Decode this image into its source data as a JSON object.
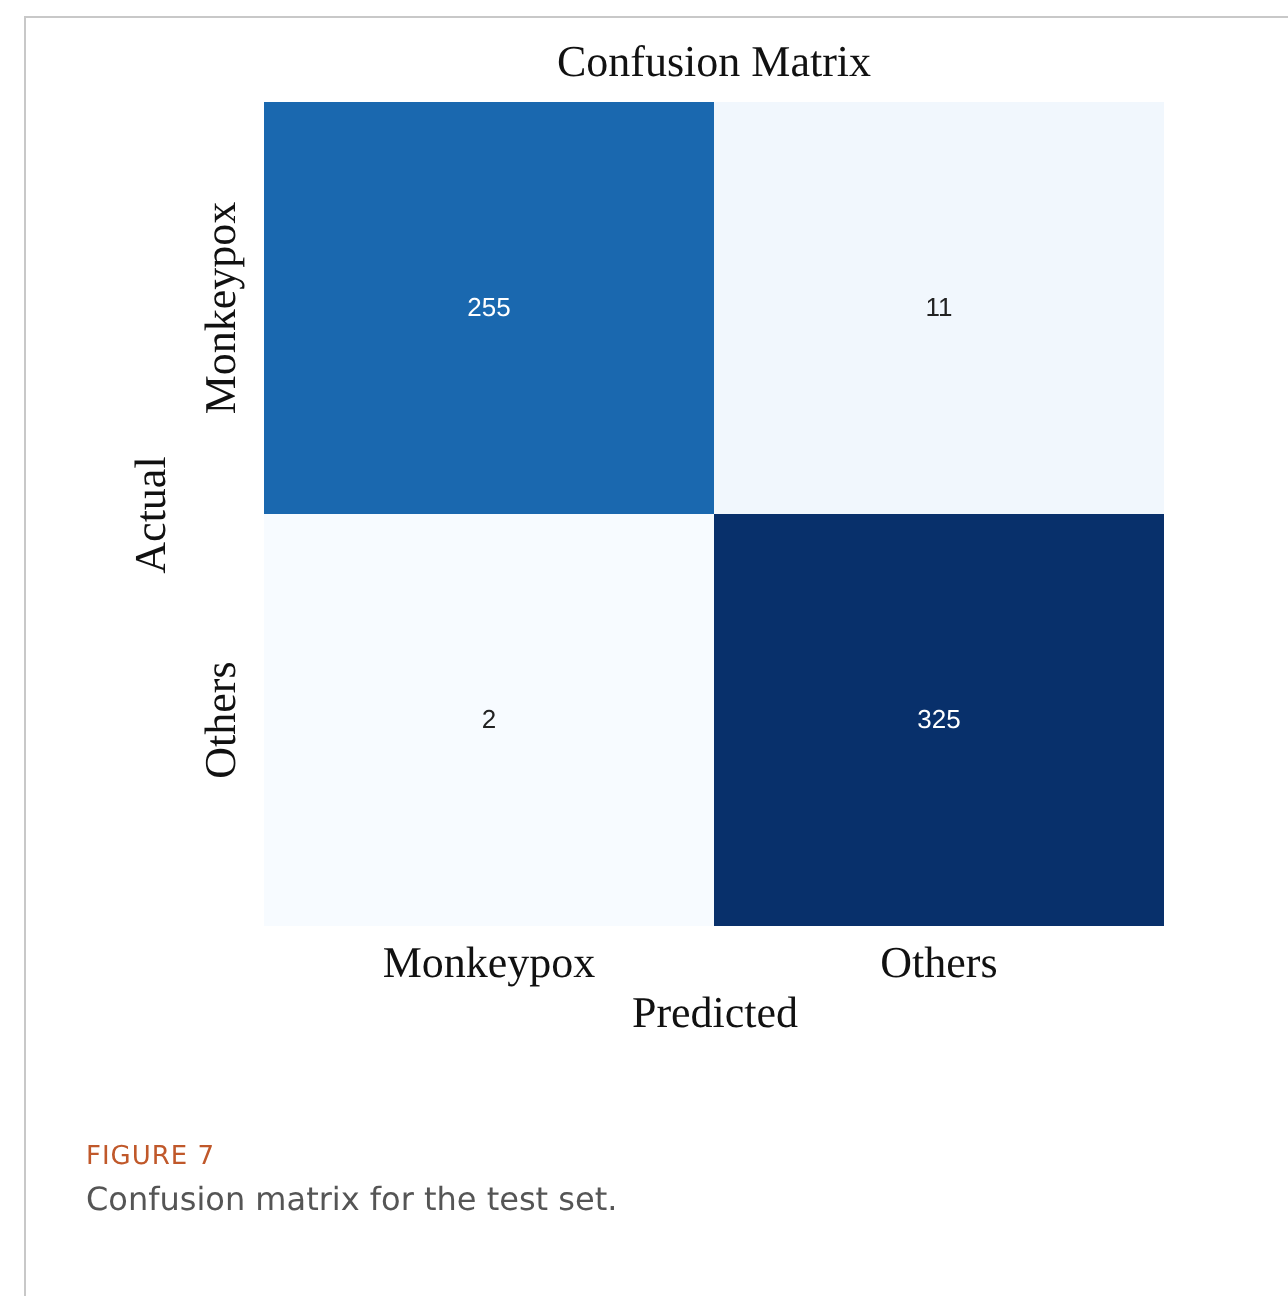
{
  "chart_data": {
    "type": "heatmap",
    "title": "Confusion Matrix",
    "xlabel": "Predicted",
    "ylabel": "Actual",
    "categories": [
      "Monkeypox",
      "Others"
    ],
    "y_categories": [
      "Monkeypox",
      "Others"
    ],
    "cells": [
      [
        255,
        11
      ],
      [
        2,
        325
      ]
    ],
    "data_labels": true,
    "annotations": [
      "FIGURE 7",
      "Confusion matrix for the test set."
    ]
  }
}
